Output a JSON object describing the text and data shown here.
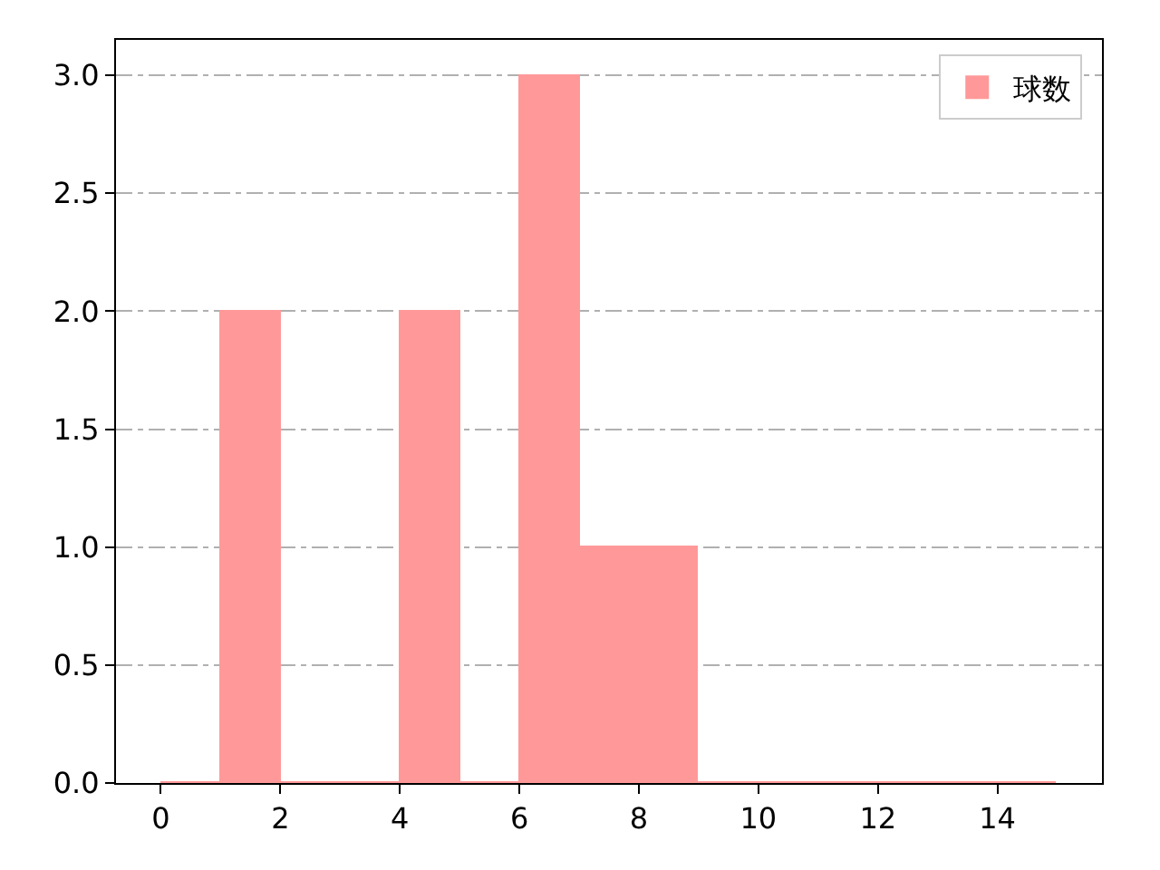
{
  "chart_data": {
    "type": "histogram",
    "bins": [
      0,
      1,
      2,
      3,
      4,
      5,
      6,
      7,
      8,
      9,
      10,
      11,
      12,
      13,
      14,
      15
    ],
    "series": [
      {
        "name": "球数",
        "color": "#ff9999",
        "values": [
          0,
          2,
          0,
          0,
          2,
          0,
          3,
          1,
          1,
          0,
          0,
          0,
          0,
          0,
          0
        ]
      }
    ],
    "xlim": [
      -0.75,
      15.75
    ],
    "xticks": [
      0,
      2,
      4,
      6,
      8,
      10,
      12,
      14
    ],
    "ylim": [
      0,
      3.15
    ],
    "yticks": [
      {
        "value": 0,
        "label": "0.0"
      },
      {
        "value": 0.5,
        "label": "0.5"
      },
      {
        "value": 1,
        "label": "1.0"
      },
      {
        "value": 1.5,
        "label": "1.5"
      },
      {
        "value": 2,
        "label": "2.0"
      },
      {
        "value": 2.5,
        "label": "2.5"
      },
      {
        "value": 3,
        "label": "3.0"
      }
    ],
    "grid": "y",
    "legend": "top right"
  }
}
